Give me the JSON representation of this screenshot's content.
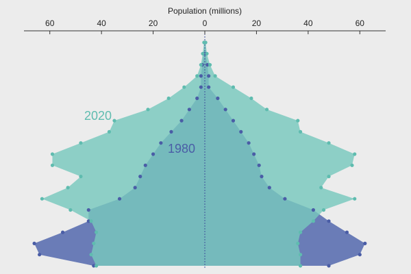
{
  "chart_data": {
    "type": "pyramid",
    "xlabel": "Population (millions)",
    "xlim": [
      -70,
      70
    ],
    "xticks": [
      {
        "value": -60,
        "label": "60"
      },
      {
        "value": -40,
        "label": "40"
      },
      {
        "value": -20,
        "label": "20"
      },
      0,
      20,
      40,
      60
    ],
    "series": [
      {
        "name": "1980",
        "color": "#6a7cb7",
        "dot_color": "#4a5da6",
        "values_left": [
          0,
          -0.3,
          -1,
          -1.5,
          -1.5,
          -3,
          -6,
          -9,
          -13,
          -17,
          -20,
          -23,
          -25,
          -27,
          -33,
          -45,
          -45,
          -55,
          -66,
          -64,
          -43
        ],
        "values_right": [
          0,
          0.3,
          1,
          1.5,
          1.5,
          5,
          8,
          11,
          14,
          17,
          19,
          21,
          22,
          25,
          31,
          42,
          48,
          55,
          62,
          60,
          48
        ]
      },
      {
        "name": "2020",
        "color": "#78c8bd",
        "dot_color": "#5fbcaf",
        "values_left": [
          -0.3,
          -0.8,
          -1.5,
          -3,
          -8,
          -14,
          -22,
          -35,
          -37,
          -48,
          -59,
          -59,
          -48,
          -53,
          -63,
          -52,
          -44,
          -42,
          -43,
          -44,
          -42
        ],
        "values_right": [
          0.3,
          0.8,
          2,
          4,
          11,
          18,
          24,
          36,
          37,
          48,
          58,
          57,
          48,
          45,
          58,
          46,
          42,
          37,
          36,
          37,
          37
        ]
      }
    ]
  }
}
